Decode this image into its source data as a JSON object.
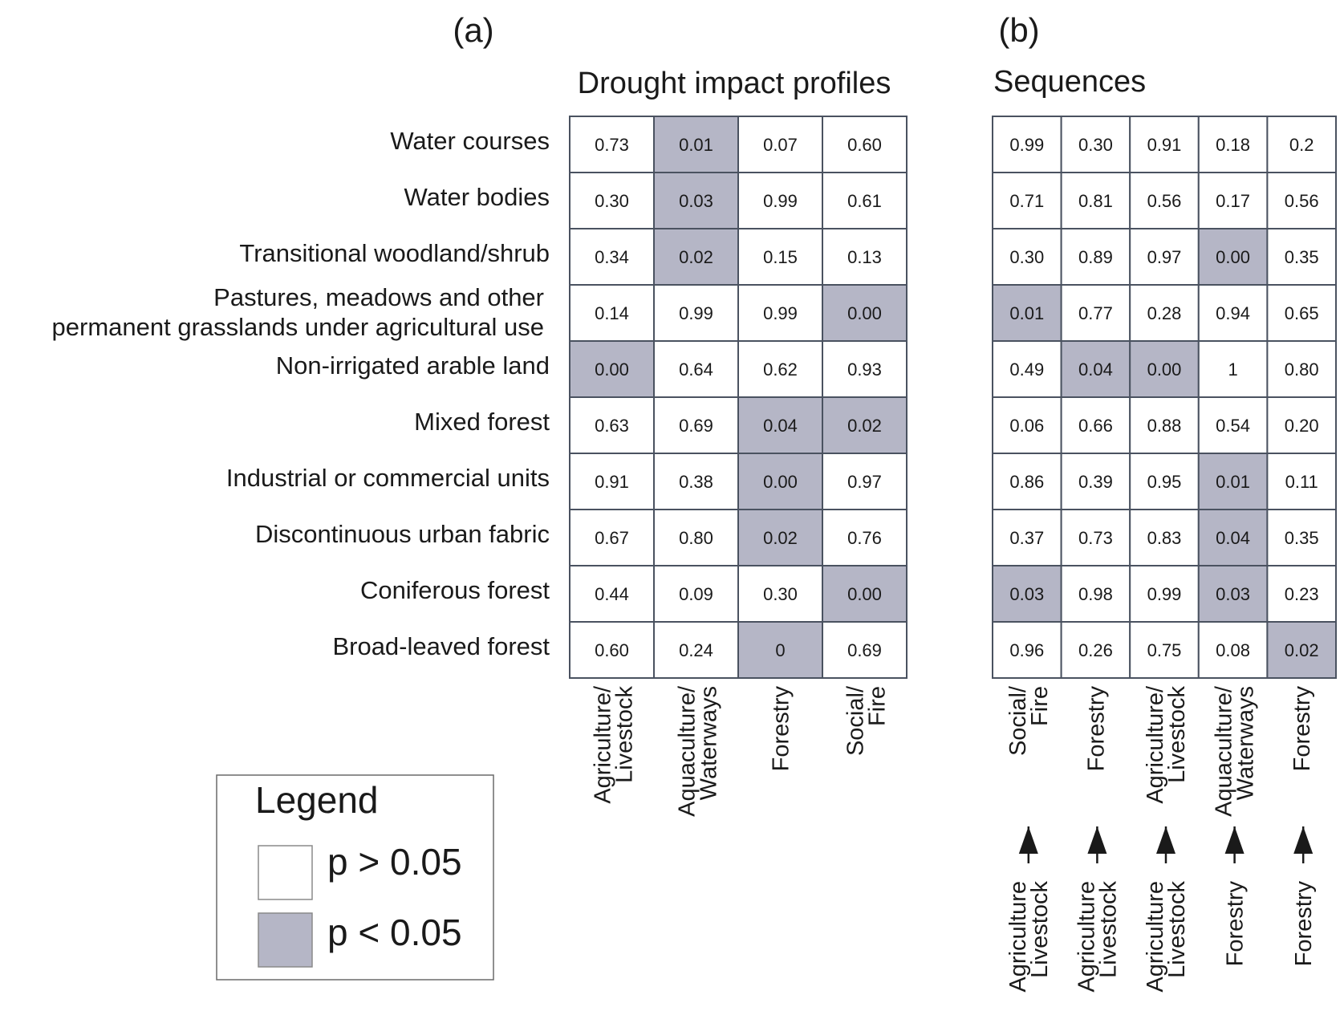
{
  "panel_a_label": "(a)",
  "panel_b_label": "(b)",
  "chart_data": [
    {
      "type": "table",
      "title": "Drought impact profiles",
      "row_labels": [
        [
          "Water courses"
        ],
        [
          "Water bodies"
        ],
        [
          "Transitional woodland/shrub"
        ],
        [
          "Pastures, meadows and other",
          "permanent grasslands under agricultural use"
        ],
        [
          "Non-irrigated arable land"
        ],
        [
          "Mixed forest"
        ],
        [
          "Industrial or commercial units"
        ],
        [
          "Discontinuous urban fabric"
        ],
        [
          "Coniferous forest"
        ],
        [
          "Broad-leaved forest"
        ]
      ],
      "columns": [
        [
          "Agriculture/",
          "Livestock"
        ],
        [
          "Aquaculture/",
          "Waterways"
        ],
        [
          "Forestry"
        ],
        [
          "Social/",
          "Fire"
        ]
      ],
      "values": [
        [
          "0.73",
          "0.01",
          "0.07",
          "0.60"
        ],
        [
          "0.30",
          "0.03",
          "0.99",
          "0.61"
        ],
        [
          "0.34",
          "0.02",
          "0.15",
          "0.13"
        ],
        [
          "0.14",
          "0.99",
          "0.99",
          "0.00"
        ],
        [
          "0.00",
          "0.64",
          "0.62",
          "0.93"
        ],
        [
          "0.63",
          "0.69",
          "0.04",
          "0.02"
        ],
        [
          "0.91",
          "0.38",
          "0.00",
          "0.97"
        ],
        [
          "0.67",
          "0.80",
          "0.02",
          "0.76"
        ],
        [
          "0.44",
          "0.09",
          "0.30",
          "0.00"
        ],
        [
          "0.60",
          "0.24",
          "0",
          "0.69"
        ]
      ],
      "significant": [
        [
          false,
          true,
          false,
          false
        ],
        [
          false,
          true,
          false,
          false
        ],
        [
          false,
          true,
          false,
          false
        ],
        [
          false,
          false,
          false,
          true
        ],
        [
          true,
          false,
          false,
          false
        ],
        [
          false,
          false,
          true,
          true
        ],
        [
          false,
          false,
          true,
          false
        ],
        [
          false,
          false,
          true,
          false
        ],
        [
          false,
          false,
          false,
          true
        ],
        [
          false,
          false,
          true,
          false
        ]
      ]
    },
    {
      "type": "table",
      "title": "Sequences",
      "columns_to": [
        [
          "Social/",
          "Fire"
        ],
        [
          "Forestry"
        ],
        [
          "Agriculture/",
          "Livestock"
        ],
        [
          "Aquaculture/",
          "Waterways"
        ],
        [
          "Forestry"
        ]
      ],
      "columns_from": [
        [
          "Agriculture",
          "Livestock"
        ],
        [
          "Agriculture",
          "Livestock"
        ],
        [
          "Agriculture",
          "Livestock"
        ],
        [
          "Forestry"
        ],
        [
          "Forestry"
        ]
      ],
      "values": [
        [
          "0.99",
          "0.30",
          "0.91",
          "0.18",
          "0.2"
        ],
        [
          "0.71",
          "0.81",
          "0.56",
          "0.17",
          "0.56"
        ],
        [
          "0.30",
          "0.89",
          "0.97",
          "0.00",
          "0.35"
        ],
        [
          "0.01",
          "0.77",
          "0.28",
          "0.94",
          "0.65"
        ],
        [
          "0.49",
          "0.04",
          "0.00",
          "1",
          "0.80"
        ],
        [
          "0.06",
          "0.66",
          "0.88",
          "0.54",
          "0.20"
        ],
        [
          "0.86",
          "0.39",
          "0.95",
          "0.01",
          "0.11"
        ],
        [
          "0.37",
          "0.73",
          "0.83",
          "0.04",
          "0.35"
        ],
        [
          "0.03",
          "0.98",
          "0.99",
          "0.03",
          "0.23"
        ],
        [
          "0.96",
          "0.26",
          "0.75",
          "0.08",
          "0.02"
        ]
      ],
      "significant": [
        [
          false,
          false,
          false,
          false,
          false
        ],
        [
          false,
          false,
          false,
          false,
          false
        ],
        [
          false,
          false,
          false,
          true,
          false
        ],
        [
          true,
          false,
          false,
          false,
          false
        ],
        [
          false,
          true,
          true,
          false,
          false
        ],
        [
          false,
          false,
          false,
          false,
          false
        ],
        [
          false,
          false,
          false,
          true,
          false
        ],
        [
          false,
          false,
          false,
          true,
          false
        ],
        [
          true,
          false,
          false,
          true,
          false
        ],
        [
          false,
          false,
          false,
          false,
          true
        ]
      ]
    }
  ],
  "legend": {
    "title": "Legend",
    "items": [
      {
        "label": "p > 0.05",
        "color": "#ffffff"
      },
      {
        "label": "p < 0.05",
        "color": "#b5b6c6"
      }
    ]
  },
  "colors": {
    "significant": "#b5b6c6",
    "nonsignificant": "#ffffff",
    "grid": "#4a5260"
  }
}
